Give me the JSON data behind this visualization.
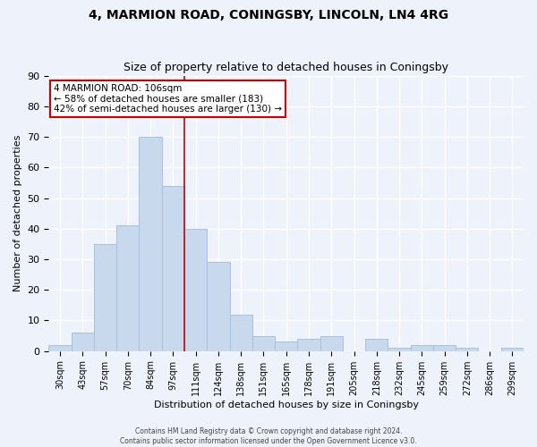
{
  "title": "4, MARMION ROAD, CONINGSBY, LINCOLN, LN4 4RG",
  "subtitle": "Size of property relative to detached houses in Coningsby",
  "xlabel": "Distribution of detached houses by size in Coningsby",
  "ylabel": "Number of detached properties",
  "bar_color": "#c8d9ee",
  "bar_edgecolor": "#a8c0dc",
  "categories": [
    "30sqm",
    "43sqm",
    "57sqm",
    "70sqm",
    "84sqm",
    "97sqm",
    "111sqm",
    "124sqm",
    "138sqm",
    "151sqm",
    "165sqm",
    "178sqm",
    "191sqm",
    "205sqm",
    "218sqm",
    "232sqm",
    "245sqm",
    "259sqm",
    "272sqm",
    "286sqm",
    "299sqm"
  ],
  "values": [
    2,
    6,
    35,
    41,
    70,
    54,
    40,
    29,
    12,
    5,
    3,
    4,
    5,
    0,
    4,
    1,
    2,
    2,
    1,
    0,
    1
  ],
  "ylim": [
    0,
    90
  ],
  "yticks": [
    0,
    10,
    20,
    30,
    40,
    50,
    60,
    70,
    80,
    90
  ],
  "vline_x": 5.5,
  "vline_color": "#cc0000",
  "annotation_title": "4 MARMION ROAD: 106sqm",
  "annotation_line1": "← 58% of detached houses are smaller (183)",
  "annotation_line2": "42% of semi-detached houses are larger (130) →",
  "annotation_box_color": "white",
  "annotation_box_edgecolor": "#cc0000",
  "footer1": "Contains HM Land Registry data © Crown copyright and database right 2024.",
  "footer2": "Contains public sector information licensed under the Open Government Licence v3.0.",
  "background_color": "#eef2fa",
  "grid_color": "white"
}
